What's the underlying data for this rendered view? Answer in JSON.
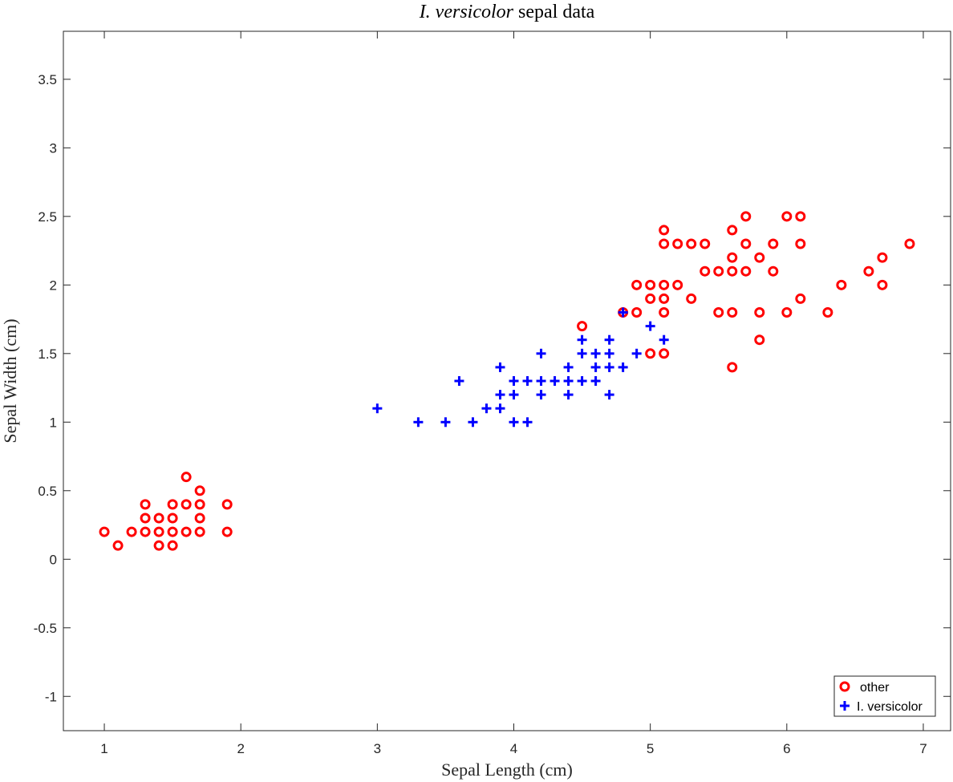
{
  "chart_data": {
    "type": "scatter",
    "title": "I. versicolor sepal data",
    "title_italic_part": "I. versicolor",
    "title_rest": " sepal data",
    "xlabel": "Sepal Length (cm)",
    "ylabel": "Sepal Width (cm)",
    "xlim": [
      0.7,
      7.2
    ],
    "ylim": [
      -1.25,
      3.85
    ],
    "xticks": [
      1,
      2,
      3,
      4,
      5,
      6,
      7
    ],
    "xtick_labels": [
      "1",
      "2",
      "3",
      "4",
      "5",
      "6",
      "7"
    ],
    "yticks": [
      -1,
      -0.5,
      0,
      0.5,
      1,
      1.5,
      2,
      2.5,
      3,
      3.5
    ],
    "ytick_labels": [
      "-1",
      "-0.5",
      "0",
      "0.5",
      "1",
      "1.5",
      "2",
      "2.5",
      "3",
      "3.5"
    ],
    "grid": false,
    "legend_position": "bottom-right",
    "series": [
      {
        "name": "other",
        "marker": "circle",
        "color": "#ff0000",
        "points": [
          [
            1.0,
            0.2
          ],
          [
            1.1,
            0.1
          ],
          [
            1.2,
            0.2
          ],
          [
            1.3,
            0.2
          ],
          [
            1.3,
            0.3
          ],
          [
            1.3,
            0.4
          ],
          [
            1.4,
            0.1
          ],
          [
            1.4,
            0.2
          ],
          [
            1.4,
            0.3
          ],
          [
            1.5,
            0.1
          ],
          [
            1.5,
            0.2
          ],
          [
            1.5,
            0.3
          ],
          [
            1.5,
            0.4
          ],
          [
            1.6,
            0.2
          ],
          [
            1.6,
            0.4
          ],
          [
            1.6,
            0.6
          ],
          [
            1.7,
            0.2
          ],
          [
            1.7,
            0.3
          ],
          [
            1.7,
            0.4
          ],
          [
            1.7,
            0.5
          ],
          [
            1.9,
            0.2
          ],
          [
            1.9,
            0.4
          ],
          [
            4.5,
            1.7
          ],
          [
            4.8,
            1.8
          ],
          [
            4.9,
            1.8
          ],
          [
            4.9,
            2.0
          ],
          [
            5.0,
            1.5
          ],
          [
            5.0,
            1.9
          ],
          [
            5.0,
            2.0
          ],
          [
            5.1,
            1.5
          ],
          [
            5.1,
            1.8
          ],
          [
            5.1,
            1.9
          ],
          [
            5.1,
            2.0
          ],
          [
            5.1,
            2.3
          ],
          [
            5.1,
            2.4
          ],
          [
            5.2,
            2.0
          ],
          [
            5.2,
            2.3
          ],
          [
            5.3,
            1.9
          ],
          [
            5.3,
            2.3
          ],
          [
            5.4,
            2.1
          ],
          [
            5.4,
            2.3
          ],
          [
            5.5,
            1.8
          ],
          [
            5.5,
            2.1
          ],
          [
            5.6,
            1.4
          ],
          [
            5.6,
            1.8
          ],
          [
            5.6,
            2.1
          ],
          [
            5.6,
            2.2
          ],
          [
            5.6,
            2.4
          ],
          [
            5.7,
            2.1
          ],
          [
            5.7,
            2.3
          ],
          [
            5.7,
            2.5
          ],
          [
            5.8,
            1.6
          ],
          [
            5.8,
            1.8
          ],
          [
            5.8,
            2.2
          ],
          [
            5.9,
            2.1
          ],
          [
            5.9,
            2.3
          ],
          [
            6.0,
            1.8
          ],
          [
            6.0,
            2.5
          ],
          [
            6.1,
            1.9
          ],
          [
            6.1,
            2.3
          ],
          [
            6.1,
            2.5
          ],
          [
            6.3,
            1.8
          ],
          [
            6.4,
            2.0
          ],
          [
            6.6,
            2.1
          ],
          [
            6.7,
            2.0
          ],
          [
            6.7,
            2.2
          ],
          [
            6.9,
            2.3
          ]
        ]
      },
      {
        "name": "I. versicolor",
        "marker": "plus",
        "color": "#0000ff",
        "points": [
          [
            3.0,
            1.1
          ],
          [
            3.3,
            1.0
          ],
          [
            3.5,
            1.0
          ],
          [
            3.6,
            1.3
          ],
          [
            3.7,
            1.0
          ],
          [
            3.8,
            1.1
          ],
          [
            3.9,
            1.1
          ],
          [
            3.9,
            1.2
          ],
          [
            3.9,
            1.4
          ],
          [
            4.0,
            1.0
          ],
          [
            4.0,
            1.2
          ],
          [
            4.0,
            1.3
          ],
          [
            4.1,
            1.0
          ],
          [
            4.1,
            1.3
          ],
          [
            4.2,
            1.2
          ],
          [
            4.2,
            1.3
          ],
          [
            4.2,
            1.5
          ],
          [
            4.3,
            1.3
          ],
          [
            4.4,
            1.2
          ],
          [
            4.4,
            1.3
          ],
          [
            4.4,
            1.4
          ],
          [
            4.5,
            1.3
          ],
          [
            4.5,
            1.5
          ],
          [
            4.5,
            1.6
          ],
          [
            4.6,
            1.3
          ],
          [
            4.6,
            1.4
          ],
          [
            4.6,
            1.5
          ],
          [
            4.7,
            1.2
          ],
          [
            4.7,
            1.4
          ],
          [
            4.7,
            1.5
          ],
          [
            4.7,
            1.6
          ],
          [
            4.8,
            1.4
          ],
          [
            4.8,
            1.8
          ],
          [
            4.9,
            1.5
          ],
          [
            5.0,
            1.7
          ],
          [
            5.1,
            1.6
          ]
        ]
      }
    ]
  }
}
